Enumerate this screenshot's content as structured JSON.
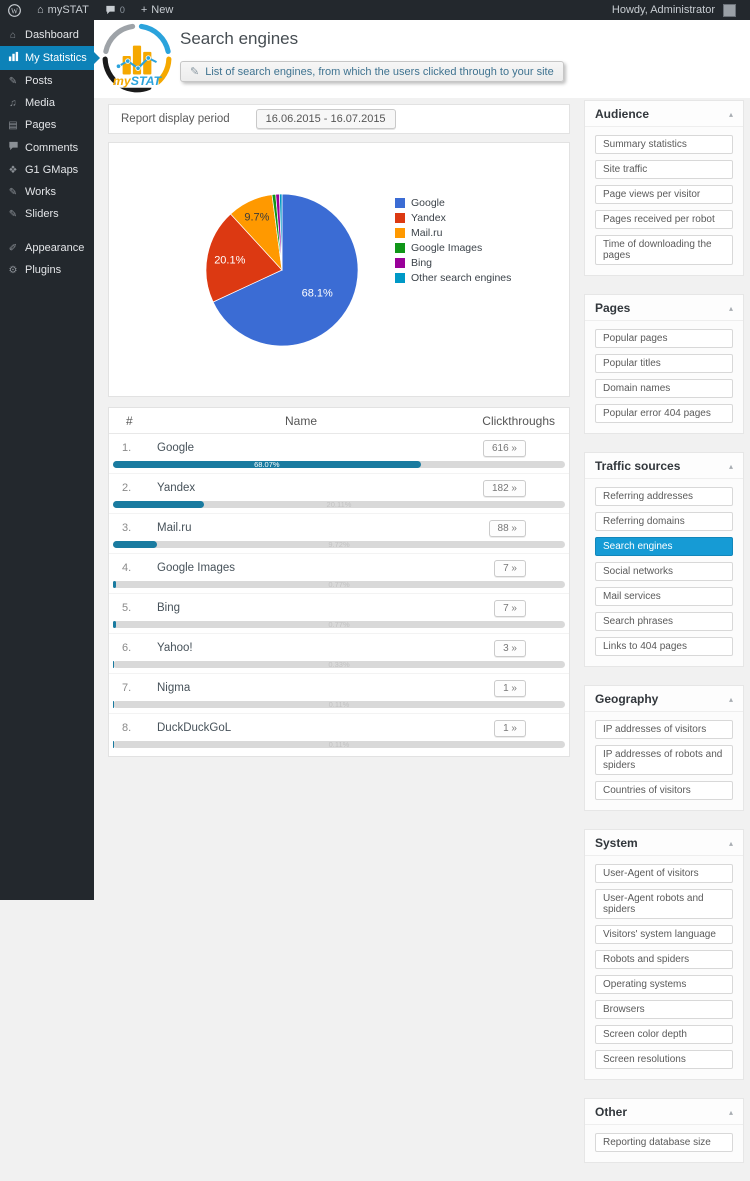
{
  "admin_bar": {
    "site_name": "mySTAT",
    "comments_count": "0",
    "new_label": "New",
    "howdy": "Howdy, Administrator"
  },
  "sidebar": {
    "items": [
      {
        "label": "Dashboard",
        "icon": "dashboard-icon",
        "active": false,
        "sep": false
      },
      {
        "label": "My Statistics",
        "icon": "bar-chart-icon",
        "active": true,
        "sep": false
      },
      {
        "label": "Posts",
        "icon": "pushpin-icon",
        "active": false,
        "sep": false
      },
      {
        "label": "Media",
        "icon": "media-icon",
        "active": false,
        "sep": false
      },
      {
        "label": "Pages",
        "icon": "pages-icon",
        "active": false,
        "sep": false
      },
      {
        "label": "Comments",
        "icon": "comment-icon",
        "active": false,
        "sep": false
      },
      {
        "label": "G1 GMaps",
        "icon": "map-plugin-icon",
        "active": false,
        "sep": false
      },
      {
        "label": "Works",
        "icon": "pushpin-icon",
        "active": false,
        "sep": false
      },
      {
        "label": "Sliders",
        "icon": "pushpin-icon",
        "active": false,
        "sep": false
      },
      {
        "label": "Appearance",
        "icon": "brush-icon",
        "active": false,
        "sep": true
      },
      {
        "label": "Plugins",
        "icon": "plugin-icon",
        "active": false,
        "sep": false
      }
    ]
  },
  "header": {
    "title": "Search engines",
    "tooltip": "List of search engines, from which the users clicked through to your site",
    "logo_my": "my",
    "logo_stat": "STAT"
  },
  "report_period": {
    "label": "Report display period",
    "value": "16.06.2015 - 16.07.2015"
  },
  "chart_data": {
    "type": "pie",
    "title": "",
    "labels": [
      "Google",
      "Yandex",
      "Mail.ru",
      "Google Images",
      "Bing",
      "Other search engines"
    ],
    "values": [
      68.07,
      20.11,
      9.72,
      0.77,
      0.77,
      0.55
    ],
    "slice_labels": [
      "68.1%",
      "20.1%",
      "9.7%",
      "",
      "",
      ""
    ],
    "colors": [
      "#3b6cd4",
      "#dc3912",
      "#ff9900",
      "#109618",
      "#990099",
      "#0099c6"
    ],
    "legend_position": "right"
  },
  "table": {
    "columns": [
      "#",
      "Name",
      "Clickthroughs"
    ],
    "arrow": "»",
    "rows": [
      {
        "rank": "1.",
        "name": "Google",
        "count": "616",
        "percent_label": "68.07%",
        "percent": 68.07
      },
      {
        "rank": "2.",
        "name": "Yandex",
        "count": "182",
        "percent_label": "20.11%",
        "percent": 20.11
      },
      {
        "rank": "3.",
        "name": "Mail.ru",
        "count": "88",
        "percent_label": "9.72%",
        "percent": 9.72
      },
      {
        "rank": "4.",
        "name": "Google Images",
        "count": "7",
        "percent_label": "0.77%",
        "percent": 0.77
      },
      {
        "rank": "5.",
        "name": "Bing",
        "count": "7",
        "percent_label": "0.77%",
        "percent": 0.77
      },
      {
        "rank": "6.",
        "name": "Yahoo!",
        "count": "3",
        "percent_label": "0.33%",
        "percent": 0.33
      },
      {
        "rank": "7.",
        "name": "Nigma",
        "count": "1",
        "percent_label": "0.11%",
        "percent": 0.11
      },
      {
        "rank": "8.",
        "name": "DuckDuckGoL",
        "count": "1",
        "percent_label": "0.11%",
        "percent": 0.11
      }
    ]
  },
  "right_sidebar": {
    "sections": [
      {
        "title": "Audience",
        "items": [
          {
            "label": "Summary statistics",
            "active": false
          },
          {
            "label": "Site traffic",
            "active": false
          },
          {
            "label": "Page views per visitor",
            "active": false
          },
          {
            "label": "Pages received per robot",
            "active": false
          },
          {
            "label": "Time of downloading the pages",
            "active": false
          }
        ]
      },
      {
        "title": "Pages",
        "items": [
          {
            "label": "Popular pages",
            "active": false
          },
          {
            "label": "Popular titles",
            "active": false
          },
          {
            "label": "Domain names",
            "active": false
          },
          {
            "label": "Popular error 404 pages",
            "active": false
          }
        ]
      },
      {
        "title": "Traffic sources",
        "items": [
          {
            "label": "Referring addresses",
            "active": false
          },
          {
            "label": "Referring domains",
            "active": false
          },
          {
            "label": "Search engines",
            "active": true
          },
          {
            "label": "Social networks",
            "active": false
          },
          {
            "label": "Mail services",
            "active": false
          },
          {
            "label": "Search phrases",
            "active": false
          },
          {
            "label": "Links to 404 pages",
            "active": false
          }
        ]
      },
      {
        "title": "Geography",
        "items": [
          {
            "label": "IP addresses of visitors",
            "active": false
          },
          {
            "label": "IP addresses of robots and spiders",
            "active": false
          },
          {
            "label": "Countries of visitors",
            "active": false
          }
        ]
      },
      {
        "title": "System",
        "items": [
          {
            "label": "User-Agent of visitors",
            "active": false
          },
          {
            "label": "User-Agent robots and spiders",
            "active": false
          },
          {
            "label": "Visitors' system language",
            "active": false
          },
          {
            "label": "Robots and spiders",
            "active": false
          },
          {
            "label": "Operating systems",
            "active": false
          },
          {
            "label": "Browsers",
            "active": false
          },
          {
            "label": "Screen color depth",
            "active": false
          },
          {
            "label": "Screen resolutions",
            "active": false
          }
        ]
      },
      {
        "title": "Other",
        "items": [
          {
            "label": "Reporting database size",
            "active": false
          }
        ]
      }
    ],
    "collapse_arrow": "▴"
  },
  "colors": {
    "admin_dark": "#23282d",
    "menu_active": "#0d82b8",
    "item_active": "#169bd5",
    "bar_fill": "#1a7ba0",
    "bar_track": "#d9d9d9"
  }
}
